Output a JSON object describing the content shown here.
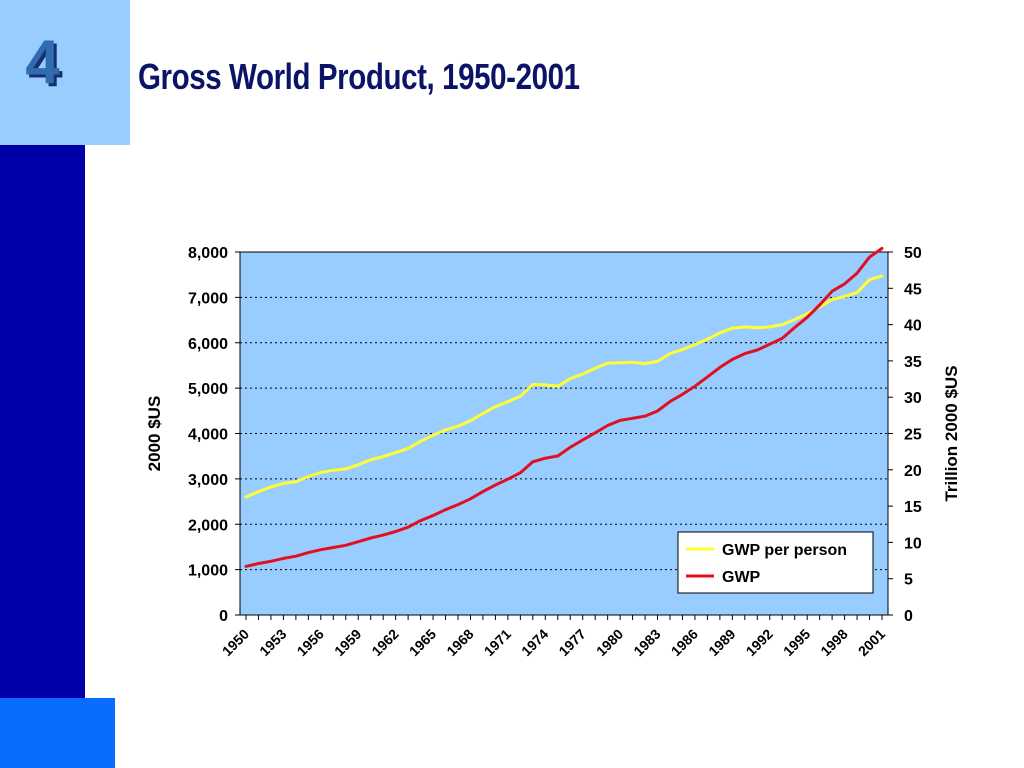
{
  "slide": {
    "number": "4",
    "title": "Gross World Product, 1950-2001"
  },
  "colors": {
    "sidebar": "#0000a8",
    "sidebar_accent": "#99ccff",
    "sidebar_bottom": "#0a6cff",
    "plot_background": "#99ccff",
    "gwp_per_person": "#ffff33",
    "gwp": "#e01020",
    "title": "#0b1466"
  },
  "chart_data": {
    "type": "line",
    "x": [
      1950,
      1951,
      1952,
      1953,
      1954,
      1955,
      1956,
      1957,
      1958,
      1959,
      1960,
      1961,
      1962,
      1963,
      1964,
      1965,
      1966,
      1967,
      1968,
      1969,
      1970,
      1971,
      1972,
      1973,
      1974,
      1975,
      1976,
      1977,
      1978,
      1979,
      1980,
      1981,
      1982,
      1983,
      1984,
      1985,
      1986,
      1987,
      1988,
      1989,
      1990,
      1991,
      1992,
      1993,
      1994,
      1995,
      1996,
      1997,
      1998,
      1999,
      2000,
      2001
    ],
    "x_tick_labels": [
      "1950",
      "1953",
      "1956",
      "1959",
      "1962",
      "1965",
      "1968",
      "1971",
      "1974",
      "1977",
      "1980",
      "1983",
      "1986",
      "1989",
      "1992",
      "1995",
      "1998",
      "2001"
    ],
    "y_left": {
      "label": "2000 $US",
      "ylim": [
        0,
        8000
      ],
      "tick_labels": [
        "0",
        "1,000",
        "2,000",
        "3,000",
        "4,000",
        "5,000",
        "6,000",
        "7,000",
        "8,000"
      ]
    },
    "y_right": {
      "label": "Trillion 2000 $US",
      "ylim": [
        0,
        50
      ],
      "tick_labels": [
        "0",
        "5",
        "10",
        "15",
        "20",
        "25",
        "30",
        "35",
        "40",
        "45",
        "50"
      ]
    },
    "grid": true,
    "legend_position": "bottom-right",
    "series": [
      {
        "name": "GWP per person",
        "axis": "left",
        "color": "#ffff33",
        "values": [
          2600,
          2720,
          2820,
          2900,
          2940,
          3050,
          3140,
          3190,
          3220,
          3310,
          3420,
          3490,
          3580,
          3670,
          3830,
          3960,
          4080,
          4160,
          4280,
          4440,
          4590,
          4700,
          4820,
          5080,
          5070,
          5040,
          5210,
          5310,
          5440,
          5550,
          5560,
          5570,
          5540,
          5590,
          5760,
          5850,
          5960,
          6080,
          6220,
          6320,
          6350,
          6330,
          6350,
          6400,
          6510,
          6640,
          6790,
          6950,
          7020,
          7110,
          7390,
          7470
        ]
      },
      {
        "name": "GWP",
        "axis": "right",
        "color": "#e01020",
        "values": [
          6.7,
          7.1,
          7.4,
          7.8,
          8.1,
          8.6,
          9.0,
          9.3,
          9.6,
          10.1,
          10.6,
          11.0,
          11.5,
          12.1,
          13.0,
          13.7,
          14.5,
          15.2,
          16.0,
          17.0,
          17.9,
          18.7,
          19.6,
          21.1,
          21.6,
          21.9,
          23.1,
          24.1,
          25.1,
          26.1,
          26.8,
          27.1,
          27.4,
          28.1,
          29.4,
          30.4,
          31.5,
          32.8,
          34.1,
          35.2,
          36.0,
          36.5,
          37.3,
          38.1,
          39.6,
          41.0,
          42.7,
          44.6,
          45.6,
          47.1,
          49.3,
          50.5
        ]
      }
    ]
  }
}
